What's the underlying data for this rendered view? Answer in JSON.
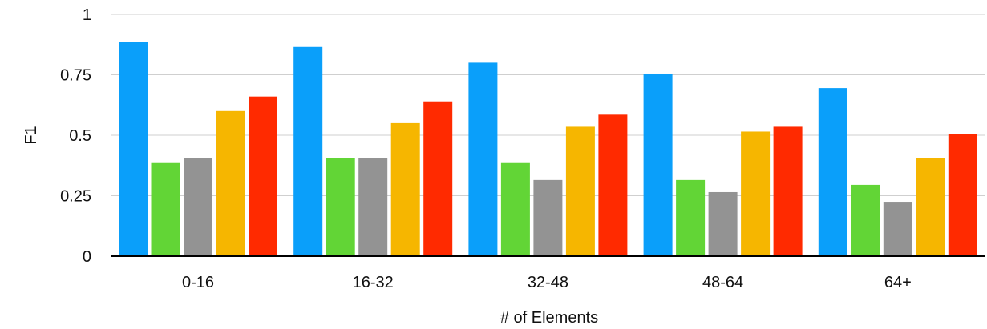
{
  "chart_data": {
    "type": "bar",
    "title": "",
    "xlabel": "# of Elements",
    "ylabel": "F1",
    "ylim": [
      0,
      1
    ],
    "yticks": [
      0,
      0.25,
      0.5,
      0.75,
      1
    ],
    "ytick_labels": [
      "0",
      "0.25",
      "0.5",
      "0.75",
      "1"
    ],
    "grid": true,
    "legend": "none",
    "categories": [
      "0-16",
      "16-32",
      "32-48",
      "48-64",
      "64+"
    ],
    "series": [
      {
        "color": "#0a9ffa",
        "values": [
          0.885,
          0.865,
          0.8,
          0.755,
          0.695
        ]
      },
      {
        "color": "#62d536",
        "values": [
          0.385,
          0.405,
          0.385,
          0.315,
          0.295
        ]
      },
      {
        "color": "#939393",
        "values": [
          0.405,
          0.405,
          0.315,
          0.265,
          0.225
        ]
      },
      {
        "color": "#f6b600",
        "values": [
          0.6,
          0.55,
          0.535,
          0.515,
          0.405
        ]
      },
      {
        "color": "#ff2a00",
        "values": [
          0.66,
          0.64,
          0.585,
          0.535,
          0.505
        ]
      }
    ]
  }
}
